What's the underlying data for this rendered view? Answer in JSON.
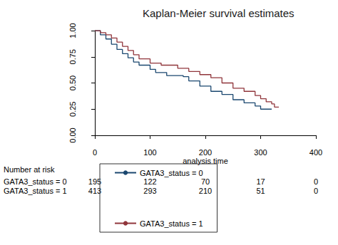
{
  "chart_data": {
    "type": "step",
    "title": "Kaplan-Meier survival estimates",
    "x_label": "analysis time",
    "xlim": [
      0,
      400
    ],
    "xticks": [
      0,
      100,
      200,
      300,
      400
    ],
    "ylim": [
      0,
      1
    ],
    "yticks": [
      {
        "value": 0,
        "label": "0.00"
      },
      {
        "value": 0.25,
        "label": "0.25"
      },
      {
        "value": 0.5,
        "label": "0.50"
      },
      {
        "value": 0.75,
        "label": "0.75"
      },
      {
        "value": 1,
        "label": "1.00"
      }
    ],
    "grid": false,
    "legend": "bottom",
    "line_style": "solid",
    "series": [
      {
        "name": "GATA3_status = 0",
        "color": "#1a476f",
        "x": [
          0,
          10,
          20,
          30,
          40,
          50,
          60,
          70,
          80,
          100,
          110,
          130,
          160,
          170,
          190,
          210,
          230,
          250,
          270,
          290,
          300,
          320
        ],
        "values": [
          1.0,
          0.96,
          0.92,
          0.87,
          0.82,
          0.78,
          0.74,
          0.7,
          0.67,
          0.63,
          0.6,
          0.57,
          0.56,
          0.52,
          0.47,
          0.42,
          0.39,
          0.34,
          0.31,
          0.28,
          0.25,
          0.25
        ]
      },
      {
        "name": "GATA3_status = 1",
        "color": "#90353b",
        "x": [
          0,
          10,
          20,
          30,
          40,
          50,
          60,
          70,
          80,
          100,
          120,
          150,
          170,
          190,
          210,
          230,
          250,
          270,
          290,
          300,
          310,
          320,
          325,
          333
        ],
        "values": [
          1.0,
          0.98,
          0.96,
          0.93,
          0.89,
          0.85,
          0.81,
          0.77,
          0.73,
          0.69,
          0.67,
          0.64,
          0.61,
          0.58,
          0.55,
          0.5,
          0.45,
          0.42,
          0.38,
          0.35,
          0.32,
          0.3,
          0.27,
          0.27
        ]
      }
    ],
    "risk_table": {
      "title": "Number at risk",
      "times": [
        0,
        100,
        200,
        300,
        400
      ],
      "rows": [
        {
          "name": "GATA3_status = 0",
          "values": [
            195,
            122,
            70,
            17,
            0
          ]
        },
        {
          "name": "GATA3_status = 1",
          "values": [
            413,
            293,
            210,
            51,
            0
          ]
        }
      ]
    }
  }
}
